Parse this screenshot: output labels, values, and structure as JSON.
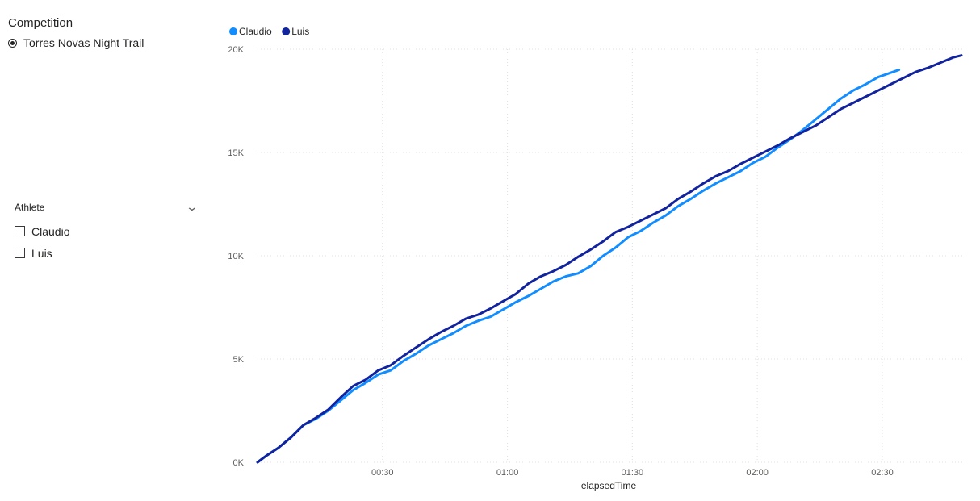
{
  "competition_slicer": {
    "title": "Competition",
    "selected": "Torres Novas Night Trail"
  },
  "athlete_slicer": {
    "title": "Athlete",
    "options": [
      "Claudio",
      "Luis"
    ]
  },
  "colors": {
    "claudio": "#118dff",
    "luis": "#12239e",
    "grid": "#e1dfdd"
  },
  "chart_data": {
    "type": "line",
    "xlabel": "elapsedTime",
    "ylabel": "",
    "x_unit": "minutes",
    "xlim": [
      0,
      169
    ],
    "ylim": [
      0,
      20000
    ],
    "x_ticks": [
      {
        "value": 30,
        "label": "00:30"
      },
      {
        "value": 60,
        "label": "01:00"
      },
      {
        "value": 90,
        "label": "01:30"
      },
      {
        "value": 120,
        "label": "02:00"
      },
      {
        "value": 150,
        "label": "02:30"
      }
    ],
    "y_ticks": [
      {
        "value": 0,
        "label": "0K"
      },
      {
        "value": 5000,
        "label": "5K"
      },
      {
        "value": 10000,
        "label": "10K"
      },
      {
        "value": 15000,
        "label": "15K"
      },
      {
        "value": 20000,
        "label": "20K"
      }
    ],
    "grid": true,
    "legend_position": "top-left",
    "series": [
      {
        "name": "Claudio",
        "color": "#118dff",
        "x": [
          0,
          2,
          5,
          8,
          11,
          14,
          17,
          20,
          23,
          26,
          29,
          32,
          35,
          38,
          41,
          44,
          47,
          50,
          53,
          56,
          59,
          62,
          65,
          68,
          71,
          74,
          77,
          80,
          83,
          86,
          89,
          92,
          95,
          98,
          101,
          104,
          107,
          110,
          113,
          116,
          119,
          122,
          125,
          128,
          131,
          134,
          137,
          140,
          143,
          146,
          149,
          154
        ],
        "y": [
          0,
          300,
          700,
          1200,
          1800,
          2100,
          2500,
          3000,
          3500,
          3850,
          4250,
          4450,
          4900,
          5250,
          5650,
          5950,
          6250,
          6600,
          6850,
          7050,
          7400,
          7750,
          8050,
          8400,
          8750,
          9000,
          9150,
          9500,
          10000,
          10400,
          10900,
          11200,
          11600,
          11950,
          12400,
          12750,
          13150,
          13500,
          13800,
          14100,
          14500,
          14800,
          15250,
          15650,
          16100,
          16600,
          17100,
          17600,
          18000,
          18300,
          18650,
          19000
        ]
      },
      {
        "name": "Luis",
        "color": "#12239e",
        "x": [
          0,
          2,
          5,
          8,
          11,
          14,
          17,
          20,
          23,
          26,
          29,
          32,
          35,
          38,
          41,
          44,
          47,
          50,
          53,
          56,
          59,
          62,
          65,
          68,
          71,
          74,
          77,
          80,
          83,
          86,
          89,
          92,
          95,
          98,
          101,
          104,
          107,
          110,
          113,
          116,
          119,
          122,
          125,
          128,
          131,
          134,
          137,
          140,
          143,
          146,
          149,
          152,
          155,
          158,
          161,
          164,
          167,
          169
        ],
        "y": [
          0,
          300,
          700,
          1200,
          1800,
          2150,
          2550,
          3150,
          3700,
          4000,
          4450,
          4700,
          5150,
          5550,
          5950,
          6300,
          6600,
          6950,
          7150,
          7450,
          7800,
          8150,
          8650,
          9000,
          9250,
          9550,
          9950,
          10300,
          10700,
          11150,
          11400,
          11700,
          12000,
          12300,
          12750,
          13100,
          13500,
          13850,
          14100,
          14450,
          14750,
          15050,
          15350,
          15700,
          16000,
          16300,
          16700,
          17100,
          17400,
          17700,
          18000,
          18300,
          18600,
          18900,
          19100,
          19350,
          19600,
          19700
        ]
      }
    ]
  }
}
